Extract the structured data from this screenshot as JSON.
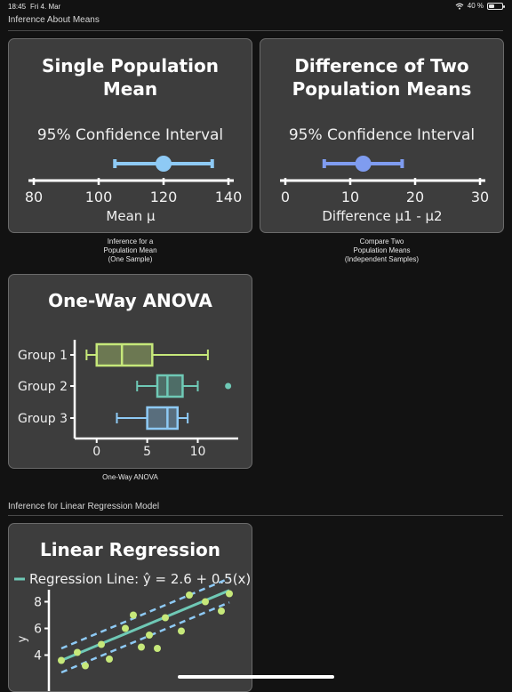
{
  "status_bar": {
    "time": "18:45",
    "date": "Fri 4. Mar",
    "battery_text": "40 %",
    "battery_level": 0.4,
    "wifi_icon": "wifi-icon"
  },
  "section_means": {
    "heading": "Inference About Means"
  },
  "card_single_mean": {
    "title_line1": "Single Population",
    "title_line2": "Mean",
    "interval_label": "95% Confidence Interval",
    "axis_label": "Mean μ",
    "ticks": [
      "80",
      "100",
      "120",
      "140"
    ],
    "tick_values": [
      80,
      100,
      120,
      140
    ],
    "ci": {
      "lower": 105,
      "estimate": 120,
      "upper": 135
    },
    "color": "#8ecaf5",
    "caption": "Inference for a\nPopulation Mean\n(One Sample)"
  },
  "card_diff_means": {
    "title_line1": "Difference of Two",
    "title_line2": "Population Means",
    "interval_label": "95% Confidence Interval",
    "axis_label": "Difference μ1 - μ2",
    "ticks": [
      "0",
      "10",
      "20",
      "30"
    ],
    "tick_values": [
      0,
      10,
      20,
      30
    ],
    "ci": {
      "lower": 6,
      "estimate": 12,
      "upper": 18
    },
    "color": "#7f9cf0",
    "caption": "Compare Two\nPopulation Means\n(Independent Samples)"
  },
  "card_anova": {
    "title": "One-Way ANOVA",
    "groups": [
      {
        "label": "Group 1",
        "min": -1,
        "q1": 0,
        "median": 2.5,
        "q3": 5.5,
        "max": 11,
        "outliers": [],
        "color": "#c6e87a"
      },
      {
        "label": "Group 2",
        "min": 4,
        "q1": 6,
        "median": 7,
        "q3": 8.5,
        "max": 10,
        "outliers": [
          13
        ],
        "color": "#6fc9b6"
      },
      {
        "label": "Group 3",
        "min": 2,
        "q1": 5,
        "median": 7,
        "q3": 8,
        "max": 9,
        "outliers": [],
        "color": "#8ecaf5"
      }
    ],
    "ticks": [
      "0",
      "5",
      "10"
    ],
    "tick_values": [
      0,
      5,
      10
    ],
    "caption": "One-Way ANOVA"
  },
  "section_regression": {
    "heading": "Inference for Linear Regression Model"
  },
  "card_regression": {
    "title": "Linear Regression",
    "legend": "Regression Line: ŷ = 2.6 + 0.5(x)",
    "ylabel": "y",
    "yticks": [
      "4",
      "6",
      "8"
    ],
    "ytick_values": [
      4,
      6,
      8
    ],
    "intercept": 2.6,
    "slope": 0.5,
    "band": 0.9,
    "xlim": [
      1.5,
      12.5
    ],
    "ylim": [
      2.5,
      8.7
    ],
    "points": [
      [
        2,
        3.6
      ],
      [
        3,
        4.2
      ],
      [
        3.5,
        3.2
      ],
      [
        4.5,
        4.8
      ],
      [
        5,
        3.7
      ],
      [
        6,
        6.0
      ],
      [
        6.5,
        7.0
      ],
      [
        7,
        4.6
      ],
      [
        7.5,
        5.5
      ],
      [
        8,
        4.5
      ],
      [
        8.5,
        6.8
      ],
      [
        9.5,
        5.8
      ],
      [
        10,
        8.5
      ],
      [
        11,
        8.0
      ],
      [
        12,
        7.3
      ],
      [
        12.5,
        8.6
      ]
    ],
    "line_color": "#6fc9b6",
    "band_color": "#8ecaf5",
    "point_color": "#c6e87a"
  }
}
